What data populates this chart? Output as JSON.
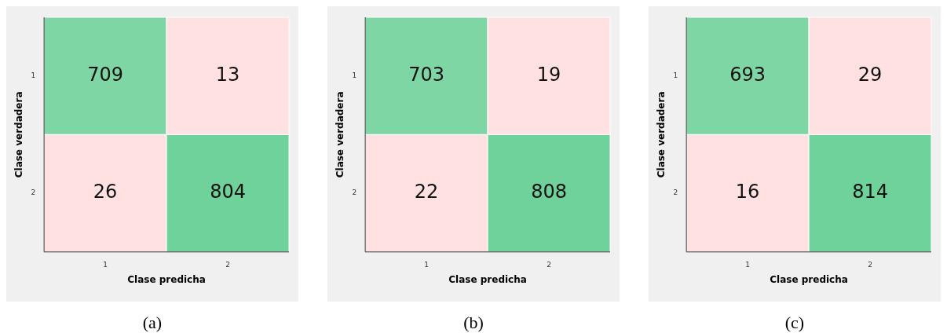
{
  "chart_data": [
    {
      "type": "heatmap",
      "xlabel": "Clase predicha",
      "ylabel": "Clase verdadera",
      "categories": [
        "1",
        "2"
      ],
      "y_categories": [
        "1",
        "2"
      ],
      "cells": [
        [
          709,
          13
        ],
        [
          26,
          804
        ]
      ],
      "data_labels": true,
      "colors": [
        [
          "#7fd6a5",
          "#ffe1e1"
        ],
        [
          "#ffe1e1",
          "#6fd29b"
        ]
      ],
      "annotations": [
        "(a)"
      ]
    },
    {
      "type": "heatmap",
      "xlabel": "Clase predicha",
      "ylabel": "Clase verdadera",
      "categories": [
        "1",
        "2"
      ],
      "y_categories": [
        "1",
        "2"
      ],
      "cells": [
        [
          703,
          19
        ],
        [
          22,
          808
        ]
      ],
      "data_labels": true,
      "colors": [
        [
          "#7fd6a5",
          "#ffe1e1"
        ],
        [
          "#ffe1e1",
          "#6fd29b"
        ]
      ],
      "annotations": [
        "(b)"
      ]
    },
    {
      "type": "heatmap",
      "xlabel": "Clase predicha",
      "ylabel": "Clase verdadera",
      "categories": [
        "1",
        "2"
      ],
      "y_categories": [
        "1",
        "2"
      ],
      "cells": [
        [
          693,
          29
        ],
        [
          16,
          814
        ]
      ],
      "data_labels": true,
      "colors": [
        [
          "#7fd6a5",
          "#ffe1e1"
        ],
        [
          "#ffe1e1",
          "#6fd29b"
        ]
      ],
      "annotations": [
        "(c)"
      ]
    }
  ]
}
